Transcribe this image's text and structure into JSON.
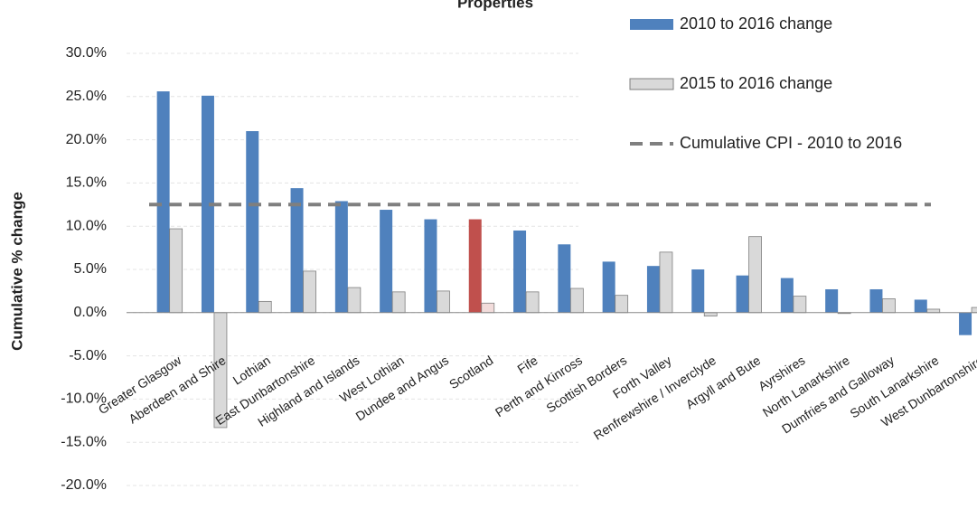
{
  "chart_data": {
    "type": "bar",
    "title": "Properties",
    "y_label": "Cumulative % change",
    "categories": [
      "Greater Glasgow",
      "Aberdeen and Shire",
      "Lothian",
      "East Dunbartonshire",
      "Highland and Islands",
      "West Lothian",
      "Dundee and Angus",
      "Scotland",
      "Fife",
      "Perth and Kinross",
      "Scottish Borders",
      "Forth Valley",
      "Renfrewshire / Inverclyde",
      "Argyll and Bute",
      "Ayrshires",
      "North Lanarkshire",
      "Dumfries and Galloway",
      "South Lanarkshire",
      "West Dunbartonshire"
    ],
    "series": [
      {
        "name": "2010 to 2016 change",
        "color": "#4f81bd",
        "colors": [
          "#4f81bd",
          "#4f81bd",
          "#4f81bd",
          "#4f81bd",
          "#4f81bd",
          "#4f81bd",
          "#4f81bd",
          "#c0504d",
          "#4f81bd",
          "#4f81bd",
          "#4f81bd",
          "#4f81bd",
          "#4f81bd",
          "#4f81bd",
          "#4f81bd",
          "#4f81bd",
          "#4f81bd",
          "#4f81bd",
          "#4f81bd"
        ],
        "values": [
          25.6,
          25.1,
          21.0,
          14.4,
          12.9,
          11.9,
          10.8,
          10.8,
          9.5,
          7.9,
          5.9,
          5.4,
          5.0,
          4.3,
          4.0,
          2.7,
          2.7,
          1.5,
          -2.6
        ]
      },
      {
        "name": "2015 to 2016 change",
        "color": "#d9d9d9",
        "colors": [
          "#d9d9d9",
          "#d9d9d9",
          "#d9d9d9",
          "#d9d9d9",
          "#d9d9d9",
          "#d9d9d9",
          "#d9d9d9",
          "#f2dcdb",
          "#d9d9d9",
          "#d9d9d9",
          "#d9d9d9",
          "#d9d9d9",
          "#d9d9d9",
          "#d9d9d9",
          "#d9d9d9",
          "#d9d9d9",
          "#d9d9d9",
          "#d9d9d9",
          "#d9d9d9"
        ],
        "values": [
          9.7,
          -13.3,
          1.3,
          4.8,
          2.9,
          2.4,
          2.5,
          1.1,
          2.4,
          2.8,
          2.0,
          7.0,
          -0.4,
          8.8,
          1.9,
          -0.1,
          1.6,
          0.4,
          0.6
        ]
      }
    ],
    "reference_lines": [
      {
        "name": "Cumulative CPI - 2010 to 2016",
        "value": 12.5,
        "color": "#7f7f7f"
      }
    ],
    "ylim": [
      -20,
      30
    ],
    "yticks": [
      {
        "value": -20,
        "label": "-20.0%"
      },
      {
        "value": -15,
        "label": "-15.0%"
      },
      {
        "value": -10,
        "label": "-10.0%"
      },
      {
        "value": -5,
        "label": "-5.0%"
      },
      {
        "value": 0,
        "label": "0.0%"
      },
      {
        "value": 5,
        "label": "5.0%"
      },
      {
        "value": 10,
        "label": "10.0%"
      },
      {
        "value": 15,
        "label": "15.0%"
      },
      {
        "value": 20,
        "label": "20.0%"
      },
      {
        "value": 25,
        "label": "25.0%"
      },
      {
        "value": 30,
        "label": "30.0%"
      }
    ],
    "grid": true,
    "legend": "top-right"
  }
}
